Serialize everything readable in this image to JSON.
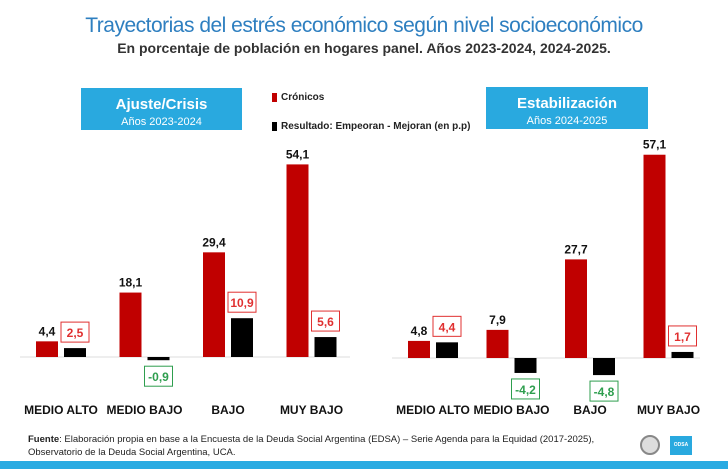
{
  "title": "Trayectorias del estrés económico según nivel socioeconómico",
  "subtitle": "En porcentaje de población en hogares panel. Años 2023-2024, 2024-2025.",
  "legend": {
    "cronicos": "Crónicos",
    "resultado": "Resultado: Empeoran - Mejoran (en p.p)"
  },
  "colors": {
    "cronicos": "#c00000",
    "resultado": "#000000",
    "positive_label": "#e03030",
    "negative_label": "#2e9e4e",
    "panel": "#29a9df"
  },
  "chart_data": [
    {
      "type": "bar",
      "panel_title": "Ajuste/Crisis",
      "panel_subtitle": "Años 2023-2024",
      "categories": [
        "MEDIO ALTO",
        "MEDIO BAJO",
        "BAJO",
        "MUY BAJO"
      ],
      "series": [
        {
          "name": "Crónicos",
          "values": [
            4.4,
            18.1,
            29.4,
            54.1
          ],
          "labels": [
            "4,4",
            "18,1",
            "29,4",
            "54,1"
          ]
        },
        {
          "name": "Resultado: Empeoran - Mejoran (en p.p)",
          "values": [
            2.5,
            -0.9,
            10.9,
            5.6
          ],
          "labels": [
            "2,5",
            "-0,9",
            "10,9",
            "5,6"
          ]
        }
      ]
    },
    {
      "type": "bar",
      "panel_title": "Estabilización",
      "panel_subtitle": "Años 2024-2025",
      "categories": [
        "MEDIO ALTO",
        "MEDIO BAJO",
        "BAJO",
        "MUY BAJO"
      ],
      "series": [
        {
          "name": "Crónicos",
          "values": [
            4.8,
            7.9,
            27.7,
            57.1
          ],
          "labels": [
            "4,8",
            "7,9",
            "27,7",
            "57,1"
          ]
        },
        {
          "name": "Resultado: Empeoran - Mejoran (en p.p)",
          "values": [
            4.4,
            -4.2,
            -4.8,
            1.7
          ],
          "labels": [
            "4,4",
            "-4,2",
            "-4,8",
            "1,7"
          ]
        }
      ]
    }
  ],
  "source": {
    "label": "Fuente",
    "text": ": Elaboración propia en base a la Encuesta de la Deuda Social Argentina (EDSA) – Serie Agenda para la Equidad (2017-2025),",
    "text2": "Observatorio de la Deuda Social Argentina, UCA."
  },
  "logos": {
    "edsa": "ODSA"
  }
}
